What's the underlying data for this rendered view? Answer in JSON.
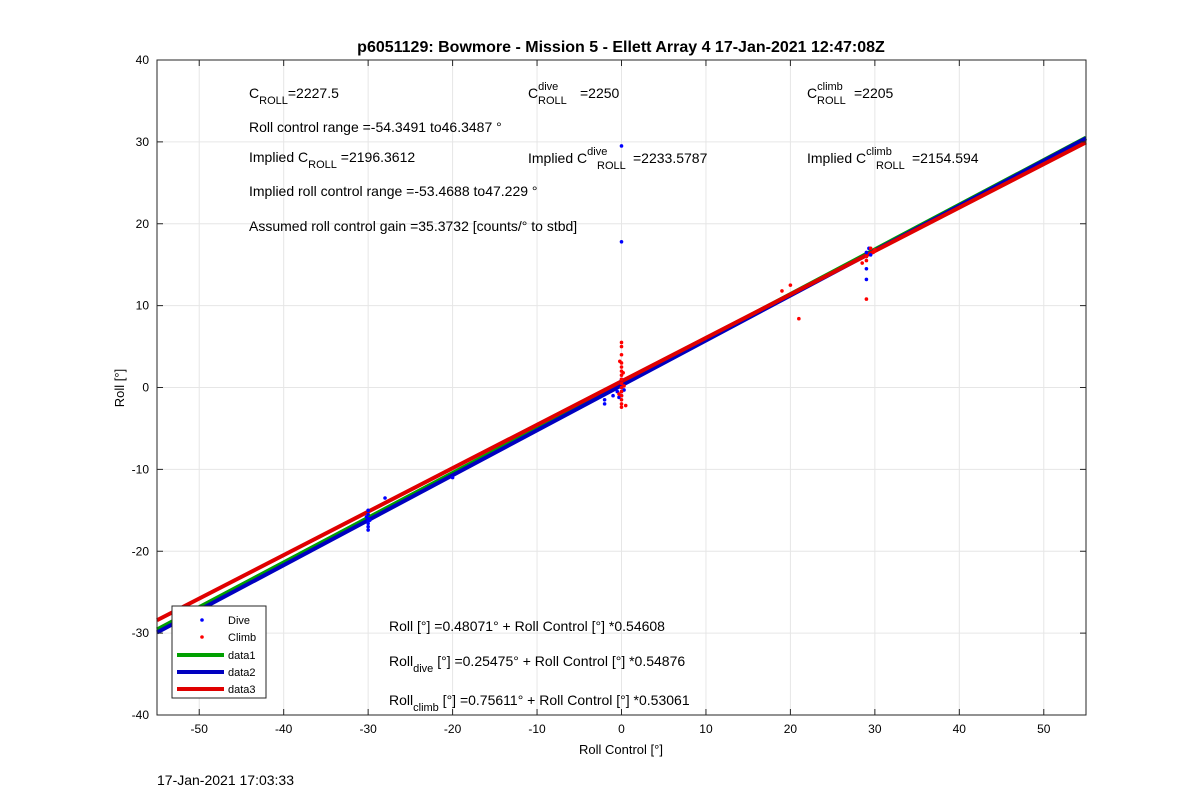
{
  "chart_data": {
    "type": "scatter",
    "title": "p6051129: Bowmore - Mission 5 - Ellett Array 4 17-Jan-2021 12:47:08Z",
    "xlabel": "Roll Control [°]",
    "ylabel": "Roll [°]",
    "xlim": [
      -55,
      55
    ],
    "ylim": [
      -40,
      40
    ],
    "xticks": [
      -50,
      -40,
      -30,
      -20,
      -10,
      0,
      10,
      20,
      30,
      40,
      50
    ],
    "yticks": [
      -40,
      -30,
      -20,
      -10,
      0,
      10,
      20,
      30,
      40
    ],
    "grid": true,
    "legend_position": "bottom-left",
    "series": [
      {
        "name": "Dive",
        "kind": "points",
        "color": "#0000ff",
        "points": [
          [
            -30,
            -15
          ],
          [
            -30,
            -15.5
          ],
          [
            -30,
            -16
          ],
          [
            -30,
            -16.3
          ],
          [
            -30,
            -16.6
          ],
          [
            -30,
            -17
          ],
          [
            -30,
            -17.4
          ],
          [
            -29.8,
            -16.2
          ],
          [
            -30.2,
            -15.8
          ],
          [
            -28,
            -13.5
          ],
          [
            -20,
            -11
          ],
          [
            -2,
            -1.5
          ],
          [
            -2,
            -2
          ],
          [
            -1,
            -1
          ],
          [
            -0.5,
            -0.5
          ],
          [
            0,
            0
          ],
          [
            0,
            -1
          ],
          [
            0,
            0.5
          ],
          [
            0,
            1
          ],
          [
            0,
            -0.5
          ],
          [
            0.3,
            -0.3
          ],
          [
            -0.3,
            -1.2
          ],
          [
            0.2,
            0.2
          ],
          [
            0,
            29.5
          ],
          [
            0,
            17.8
          ],
          [
            29,
            14.5
          ],
          [
            29,
            13.2
          ],
          [
            29,
            16
          ],
          [
            29,
            16.5
          ],
          [
            29.3,
            17
          ],
          [
            29.5,
            16.2
          ]
        ]
      },
      {
        "name": "Climb",
        "kind": "points",
        "color": "#ff0000",
        "points": [
          [
            0,
            5.5
          ],
          [
            0,
            5
          ],
          [
            0,
            4
          ],
          [
            0,
            3
          ],
          [
            0,
            2.5
          ],
          [
            0,
            2
          ],
          [
            0,
            1.5
          ],
          [
            0,
            1
          ],
          [
            0,
            0.5
          ],
          [
            0,
            0
          ],
          [
            0,
            -0.5
          ],
          [
            0,
            -1
          ],
          [
            0,
            -1.5
          ],
          [
            0,
            -2
          ],
          [
            0,
            -2.4
          ],
          [
            -0.2,
            3.2
          ],
          [
            0.2,
            1.8
          ],
          [
            -0.3,
            -0.8
          ],
          [
            0.3,
            0.2
          ],
          [
            0.5,
            -2.2
          ],
          [
            19,
            11.8
          ],
          [
            20,
            12.5
          ],
          [
            21,
            8.4
          ],
          [
            29,
            10.8
          ],
          [
            29,
            16
          ],
          [
            29,
            15.5
          ],
          [
            29.5,
            17
          ],
          [
            29.8,
            16.5
          ],
          [
            30,
            16.8
          ],
          [
            28.5,
            15.2
          ]
        ]
      },
      {
        "name": "data1",
        "kind": "line",
        "color": "#00a000",
        "intercept": 0.48071,
        "slope": 0.54608
      },
      {
        "name": "data2",
        "kind": "line",
        "color": "#0000c0",
        "intercept": 0.25475,
        "slope": 0.54876
      },
      {
        "name": "data3",
        "kind": "line",
        "color": "#e00000",
        "intercept": 0.75611,
        "slope": 0.53061
      }
    ],
    "annotations": {
      "c_roll": {
        "base": "C",
        "sub": "ROLL",
        "sup": "",
        "value": "=2227.5"
      },
      "c_roll_dive": {
        "base": "C",
        "sub": "ROLL",
        "sup": "dive",
        "value": " =2250"
      },
      "c_roll_climb": {
        "base": "C",
        "sub": "ROLL",
        "sup": "climb",
        "value": " =2205"
      },
      "roll_control_range": "Roll control range =-54.3491 to46.3487 °",
      "implied_c_roll": {
        "prefix": "Implied C",
        "sub": "ROLL",
        "sup": "",
        "value": " =2196.3612"
      },
      "implied_c_roll_dive": {
        "prefix": "Implied C",
        "sub": "ROLL",
        "sup": "dive",
        "value": " =2233.5787"
      },
      "implied_c_roll_climb": {
        "prefix": "Implied C",
        "sub": "ROLL",
        "sup": "climb",
        "value": " =2154.594"
      },
      "implied_range": "Implied roll control range =-53.4688 to47.229 °",
      "assumed_gain": "Assumed roll control gain =35.3732 [counts/° to stbd]",
      "fit_all": {
        "prefix": "Roll",
        "sub": "",
        "rest": " [°] =0.48071° + Roll Control [°] *0.54608"
      },
      "fit_dive": {
        "prefix": "Roll",
        "sub": "dive",
        "rest": " [°] =0.25475° + Roll Control [°] *0.54876"
      },
      "fit_climb": {
        "prefix": "Roll",
        "sub": "climb",
        "rest": " [°] =0.75611° + Roll Control [°] *0.53061"
      }
    }
  },
  "footer_timestamp": "17-Jan-2021 17:03:33"
}
